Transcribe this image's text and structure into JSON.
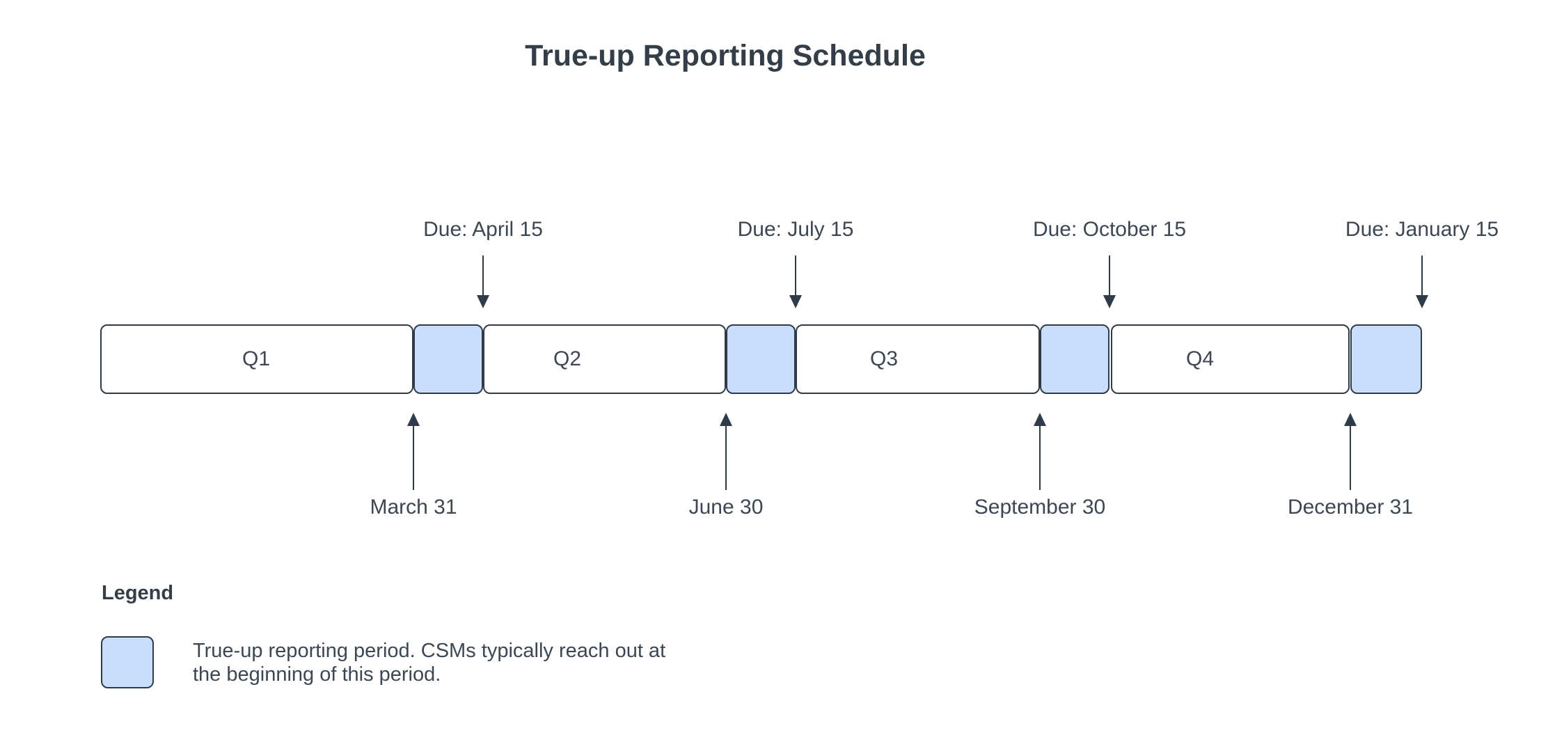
{
  "title": "True-up Reporting Schedule",
  "diagram": {
    "type": "timeline",
    "quarters": [
      {
        "label": "Q1",
        "end_label": "March 31",
        "due_label": "Due: April 15"
      },
      {
        "label": "Q2",
        "end_label": "June 30",
        "due_label": "Due: July 15"
      },
      {
        "label": "Q3",
        "end_label": "September 30",
        "due_label": "Due: October 15"
      },
      {
        "label": "Q4",
        "end_label": "December 31",
        "due_label": "Due: January 15"
      }
    ]
  },
  "legend": {
    "heading": "Legend",
    "description_line1": "True-up reporting period. CSMs typically reach out at",
    "description_line2": "the beginning of this period.",
    "description": "True-up reporting period. CSMs typically reach out at the beginning of this period."
  },
  "colors": {
    "period_fill": "#c8defb",
    "outline": "#2f3b49",
    "text": "#3c4753",
    "background": "#ffffff"
  }
}
